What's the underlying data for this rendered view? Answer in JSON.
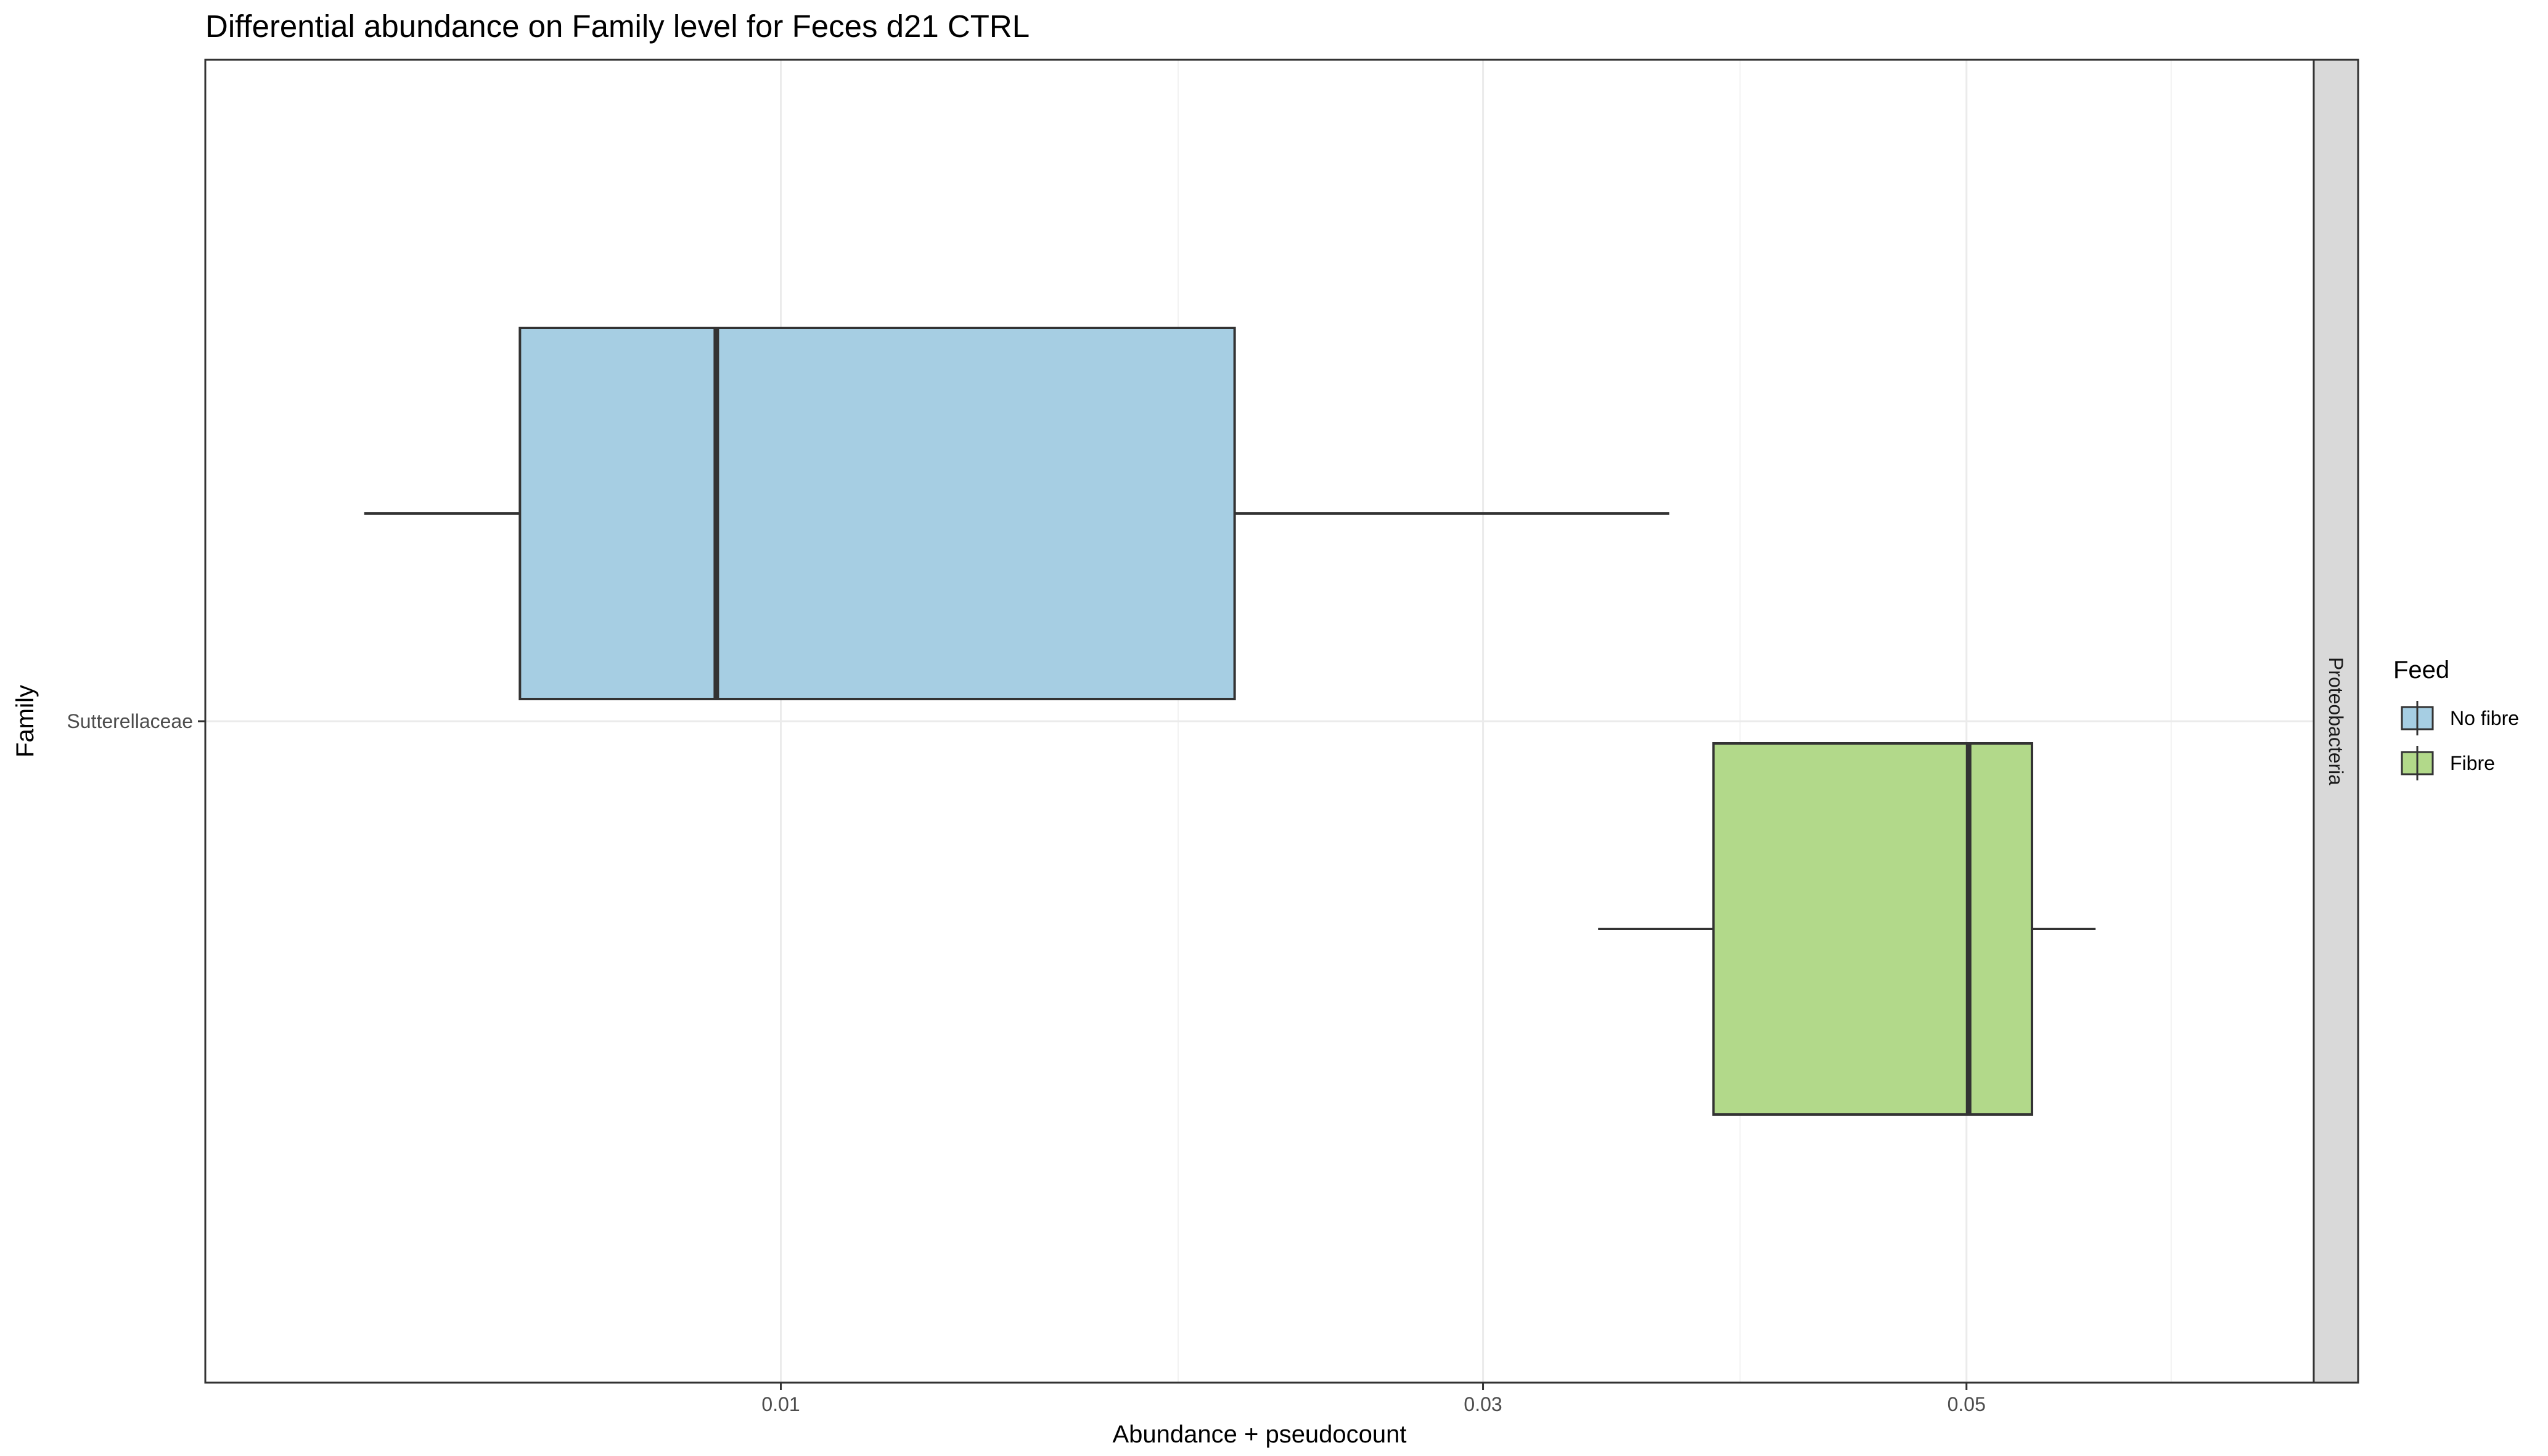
{
  "chart_data": {
    "type": "boxplot",
    "orientation": "horizontal",
    "title": "Differential abundance on Family level for Feces d21 CTRL",
    "xlabel": "Abundance + pseudocount",
    "ylabel": "Family",
    "x_scale": "sqrt",
    "xlim": [
      0.0016,
      0.0675
    ],
    "x_ticks": [
      0.01,
      0.03,
      0.05
    ],
    "x_tick_labels": [
      "0.01",
      "0.03",
      "0.05"
    ],
    "x_minor_ticks": [
      0.02,
      0.04,
      0.06
    ],
    "categories": [
      "Sutterellaceae"
    ],
    "facet_label": "Proteobacteria",
    "grid": true,
    "legend": {
      "title": "Feed",
      "position": "right",
      "entries": [
        {
          "label": "No fibre",
          "color": "#a6cee3"
        },
        {
          "label": "Fibre",
          "color": "#b2d98a"
        }
      ]
    },
    "series": [
      {
        "name": "No fibre",
        "category": "Sutterellaceae",
        "color": "#a6cee3",
        "min": 0.0032,
        "q1": 0.0053,
        "median": 0.0087,
        "q3": 0.0217,
        "max": 0.0371
      },
      {
        "name": "Fibre",
        "category": "Sutterellaceae",
        "color": "#b2d98a",
        "min": 0.0343,
        "q1": 0.0389,
        "median": 0.0501,
        "q3": 0.0531,
        "max": 0.0562
      }
    ]
  }
}
